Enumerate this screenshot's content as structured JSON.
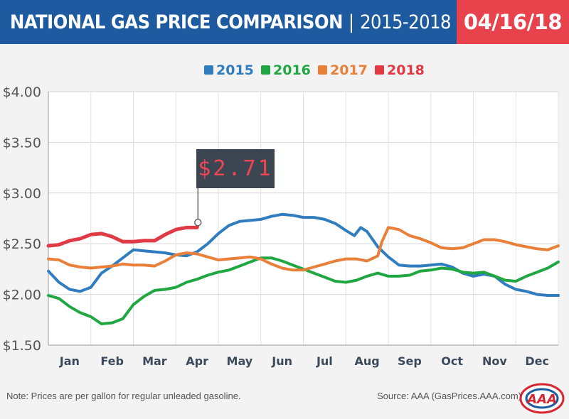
{
  "header": {
    "title": "NATIONAL GAS PRICE COMPARISON",
    "separator": "|",
    "years": "2015-2018",
    "date": "04/16/18"
  },
  "footer": {
    "note": "Note: Prices are per gallon for regular unleaded gasoline.",
    "source": "Source: AAA (GasPrices.AAA.com)",
    "logo_text": "AAA"
  },
  "chart_data": {
    "type": "line",
    "title": "",
    "xlabel": "",
    "ylabel": "",
    "ylim": [
      1.5,
      4.0
    ],
    "xlim": [
      0,
      12
    ],
    "y_ticks": [
      "$4.00",
      "$3.50",
      "$3.00",
      "$2.50",
      "$2.00",
      "$1.50"
    ],
    "y_tick_values": [
      4.0,
      3.5,
      3.0,
      2.5,
      2.0,
      1.5
    ],
    "categories": [
      "Jan",
      "Feb",
      "Mar",
      "Apr",
      "May",
      "Jun",
      "Jul",
      "Aug",
      "Sep",
      "Oct",
      "Nov",
      "Dec"
    ],
    "grid": true,
    "legend": "top-center",
    "annotation": {
      "text": "$2.71",
      "x": 3.52,
      "y": 2.71
    },
    "series": [
      {
        "name": "2015",
        "color": "#2f7dbf",
        "x": [
          0,
          0.25,
          0.5,
          0.75,
          1.0,
          1.25,
          1.5,
          1.75,
          2.0,
          2.25,
          2.5,
          2.75,
          3.0,
          3.25,
          3.5,
          3.75,
          4.0,
          4.25,
          4.5,
          4.75,
          5.0,
          5.25,
          5.5,
          5.75,
          6.0,
          6.25,
          6.5,
          6.75,
          7.0,
          7.2,
          7.35,
          7.5,
          7.75,
          8.0,
          8.25,
          8.5,
          8.75,
          9.0,
          9.25,
          9.5,
          9.75,
          10.0,
          10.25,
          10.5,
          10.75,
          11.0,
          11.25,
          11.5,
          11.75,
          12.0
        ],
        "values": [
          2.23,
          2.12,
          2.05,
          2.03,
          2.07,
          2.21,
          2.28,
          2.36,
          2.44,
          2.43,
          2.42,
          2.41,
          2.39,
          2.38,
          2.42,
          2.5,
          2.6,
          2.68,
          2.72,
          2.73,
          2.74,
          2.77,
          2.79,
          2.78,
          2.76,
          2.76,
          2.74,
          2.7,
          2.63,
          2.58,
          2.66,
          2.62,
          2.47,
          2.37,
          2.29,
          2.28,
          2.28,
          2.29,
          2.3,
          2.27,
          2.21,
          2.18,
          2.2,
          2.18,
          2.1,
          2.05,
          2.03,
          2.0,
          1.99,
          1.99
        ]
      },
      {
        "name": "2016",
        "color": "#20a742",
        "x": [
          0,
          0.25,
          0.5,
          0.75,
          1.0,
          1.25,
          1.5,
          1.75,
          2.0,
          2.25,
          2.5,
          2.75,
          3.0,
          3.25,
          3.5,
          3.75,
          4.0,
          4.25,
          4.5,
          4.75,
          5.0,
          5.25,
          5.5,
          5.75,
          6.0,
          6.25,
          6.5,
          6.75,
          7.0,
          7.25,
          7.5,
          7.75,
          8.0,
          8.25,
          8.5,
          8.75,
          9.0,
          9.25,
          9.5,
          9.75,
          10.0,
          10.25,
          10.5,
          10.75,
          11.0,
          11.25,
          11.5,
          11.75,
          12.0
        ],
        "values": [
          1.99,
          1.96,
          1.88,
          1.82,
          1.78,
          1.71,
          1.72,
          1.76,
          1.9,
          1.98,
          2.04,
          2.05,
          2.07,
          2.12,
          2.15,
          2.19,
          2.22,
          2.24,
          2.28,
          2.32,
          2.36,
          2.36,
          2.33,
          2.29,
          2.25,
          2.21,
          2.17,
          2.13,
          2.12,
          2.14,
          2.18,
          2.21,
          2.18,
          2.18,
          2.19,
          2.23,
          2.24,
          2.26,
          2.25,
          2.22,
          2.21,
          2.22,
          2.18,
          2.14,
          2.13,
          2.18,
          2.22,
          2.26,
          2.32
        ]
      },
      {
        "name": "2017",
        "color": "#e8803a",
        "x": [
          0,
          0.25,
          0.5,
          0.75,
          1.0,
          1.25,
          1.5,
          1.75,
          2.0,
          2.25,
          2.5,
          2.75,
          3.0,
          3.25,
          3.5,
          3.75,
          4.0,
          4.25,
          4.5,
          4.75,
          5.0,
          5.25,
          5.5,
          5.75,
          6.0,
          6.25,
          6.5,
          6.75,
          7.0,
          7.25,
          7.5,
          7.75,
          7.85,
          8.0,
          8.25,
          8.5,
          8.75,
          9.0,
          9.25,
          9.5,
          9.75,
          10.0,
          10.25,
          10.5,
          10.75,
          11.0,
          11.25,
          11.5,
          11.75,
          12.0
        ],
        "values": [
          2.35,
          2.34,
          2.29,
          2.27,
          2.26,
          2.27,
          2.28,
          2.3,
          2.29,
          2.29,
          2.28,
          2.33,
          2.39,
          2.41,
          2.4,
          2.37,
          2.34,
          2.35,
          2.36,
          2.37,
          2.35,
          2.3,
          2.26,
          2.24,
          2.24,
          2.27,
          2.3,
          2.33,
          2.35,
          2.35,
          2.33,
          2.38,
          2.52,
          2.66,
          2.64,
          2.58,
          2.55,
          2.51,
          2.46,
          2.45,
          2.46,
          2.5,
          2.54,
          2.54,
          2.52,
          2.49,
          2.47,
          2.45,
          2.44,
          2.48
        ]
      },
      {
        "name": "2018",
        "color": "#e03a45",
        "x": [
          0,
          0.25,
          0.5,
          0.75,
          1.0,
          1.25,
          1.5,
          1.75,
          2.0,
          2.25,
          2.5,
          2.75,
          3.0,
          3.25,
          3.5,
          3.52
        ],
        "values": [
          2.48,
          2.49,
          2.53,
          2.55,
          2.59,
          2.6,
          2.57,
          2.52,
          2.52,
          2.53,
          2.53,
          2.59,
          2.64,
          2.66,
          2.66,
          2.71
        ]
      }
    ]
  }
}
